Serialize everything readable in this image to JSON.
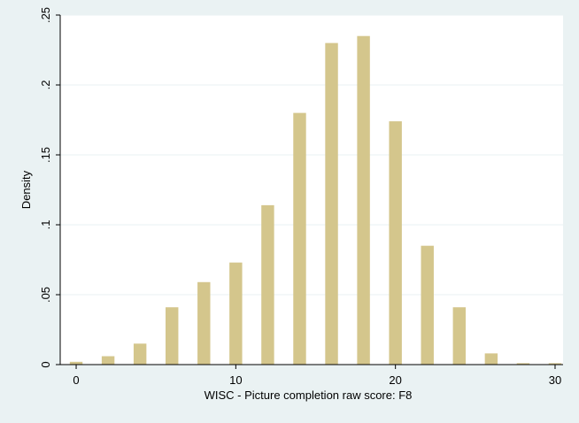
{
  "colors": {
    "outer_background": "#eaf2f3",
    "plot_background": "#ffffff",
    "gridline": "#eaf2f3",
    "bar_fill": "#d4c68c",
    "axis": "#000000"
  },
  "chart_data": {
    "type": "bar",
    "title": "",
    "xlabel": "WISC - Picture completion raw score: F8",
    "ylabel": "Density",
    "xlim": [
      -1,
      30.5
    ],
    "ylim": [
      0,
      0.25
    ],
    "x_ticks": [
      0,
      10,
      20,
      30
    ],
    "x_tick_labels": [
      "0",
      "10",
      "20",
      "30"
    ],
    "y_ticks": [
      0,
      0.05,
      0.1,
      0.15,
      0.2,
      0.25
    ],
    "y_tick_labels": [
      "0",
      ".05",
      ".1",
      ".15",
      ".2",
      ".25"
    ],
    "grid": true,
    "bar_width": 0.8,
    "x": [
      0,
      2,
      4,
      6,
      8,
      10,
      12,
      14,
      16,
      18,
      20,
      22,
      24,
      26,
      28,
      30
    ],
    "values": [
      0.002,
      0.006,
      0.015,
      0.041,
      0.059,
      0.073,
      0.114,
      0.18,
      0.23,
      0.235,
      0.174,
      0.085,
      0.041,
      0.008,
      0.001,
      0.001
    ]
  }
}
